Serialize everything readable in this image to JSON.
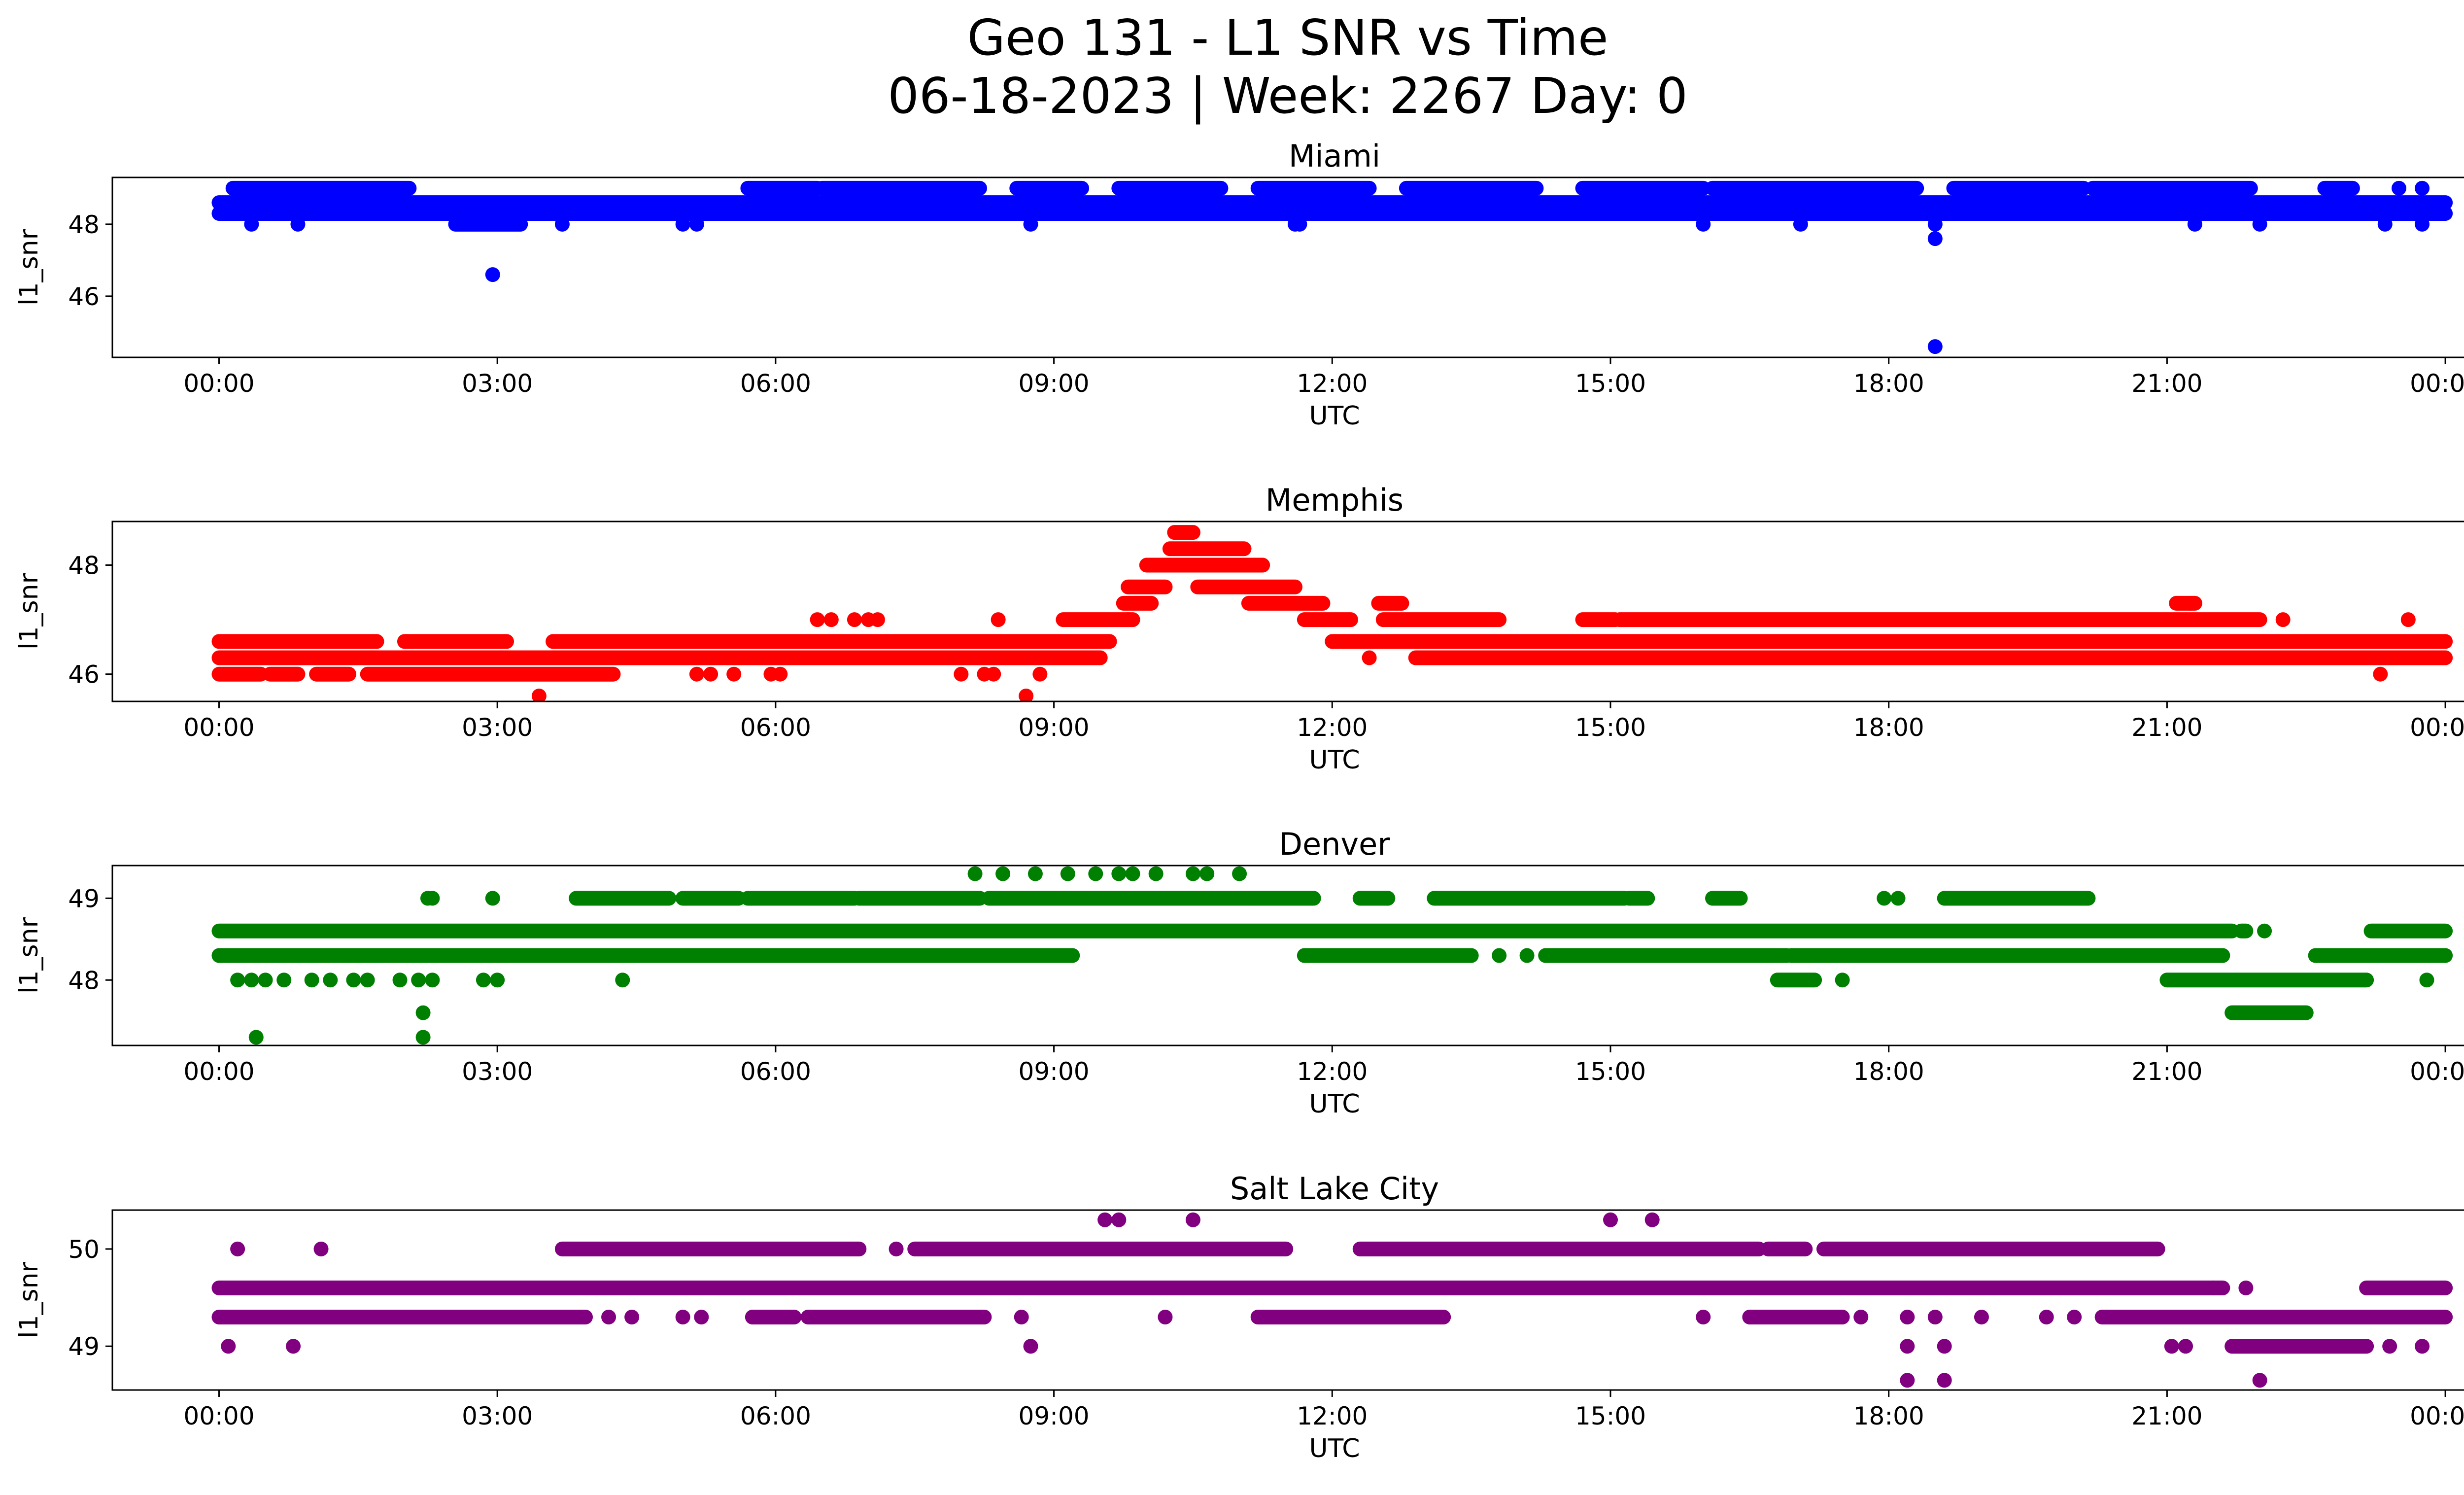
{
  "figure": {
    "title_line1": "Geo 131 - L1 SNR vs Time",
    "title_line2": "06-18-2023 | Week: 2267 Day: 0"
  },
  "chart_data": [
    {
      "type": "scatter",
      "title": "Miami",
      "xlabel": "UTC",
      "ylabel": "l1_snr",
      "x_tick_labels": [
        "00:00",
        "03:00",
        "06:00",
        "09:00",
        "12:00",
        "15:00",
        "18:00",
        "21:00",
        "00:00"
      ],
      "xlim_hours": [
        -1.15,
        25.2
      ],
      "ylim": [
        44.3,
        49.3
      ],
      "y_ticks": [
        46,
        48
      ],
      "color": "#0000ff",
      "grid": false,
      "bands": [
        {
          "y": 48.6,
          "segments": [
            [
              0,
              24
            ]
          ]
        },
        {
          "y": 48.3,
          "segments": [
            [
              0,
              24
            ]
          ]
        },
        {
          "y": 49.0,
          "segments": [
            [
              0.15,
              2.05
            ],
            [
              5.7,
              6.45
            ],
            [
              6.5,
              8.2
            ],
            [
              8.6,
              9.3
            ],
            [
              9.7,
              10.8
            ],
            [
              11.2,
              12.4
            ],
            [
              12.8,
              14.2
            ],
            [
              14.7,
              16.0
            ],
            [
              16.1,
              18.3
            ],
            [
              18.7,
              20.1
            ],
            [
              20.2,
              21.9
            ],
            [
              22.7,
              23.0
            ]
          ]
        },
        {
          "y": 48.0,
          "segments": [
            [
              2.55,
              3.25
            ]
          ]
        }
      ],
      "points": [
        {
          "x": 0.35,
          "y": 48.0
        },
        {
          "x": 0.85,
          "y": 48.0
        },
        {
          "x": 2.95,
          "y": 46.6
        },
        {
          "x": 3.7,
          "y": 48.0
        },
        {
          "x": 5.0,
          "y": 48.0
        },
        {
          "x": 5.15,
          "y": 48.0
        },
        {
          "x": 8.75,
          "y": 48.0
        },
        {
          "x": 11.6,
          "y": 48.0
        },
        {
          "x": 11.65,
          "y": 48.0
        },
        {
          "x": 16.0,
          "y": 48.0
        },
        {
          "x": 17.05,
          "y": 48.0
        },
        {
          "x": 18.5,
          "y": 48.0
        },
        {
          "x": 18.5,
          "y": 47.6
        },
        {
          "x": 18.5,
          "y": 44.6
        },
        {
          "x": 21.3,
          "y": 48.0
        },
        {
          "x": 22.0,
          "y": 48.0
        },
        {
          "x": 23.35,
          "y": 48.0
        },
        {
          "x": 23.5,
          "y": 49.0
        },
        {
          "x": 23.75,
          "y": 49.0
        },
        {
          "x": 23.75,
          "y": 48.0
        }
      ]
    },
    {
      "type": "scatter",
      "title": "Memphis",
      "xlabel": "UTC",
      "ylabel": "l1_snr",
      "x_tick_labels": [
        "00:00",
        "03:00",
        "06:00",
        "09:00",
        "12:00",
        "15:00",
        "18:00",
        "21:00",
        "00:00"
      ],
      "xlim_hours": [
        -1.15,
        25.2
      ],
      "ylim": [
        45.5,
        48.8
      ],
      "y_ticks": [
        46,
        48
      ],
      "color": "#ff0000",
      "grid": false,
      "bands": [
        {
          "y": 46.6,
          "segments": [
            [
              0,
              1.7
            ],
            [
              2.0,
              3.1
            ],
            [
              3.6,
              9.6
            ],
            [
              12.0,
              24
            ]
          ]
        },
        {
          "y": 46.3,
          "segments": [
            [
              0,
              9.5
            ],
            [
              12.9,
              24
            ]
          ]
        },
        {
          "y": 46.0,
          "segments": [
            [
              0,
              0.45
            ],
            [
              0.55,
              0.85
            ],
            [
              1.05,
              1.4
            ],
            [
              1.6,
              4.25
            ]
          ]
        },
        {
          "y": 47.0,
          "segments": [
            [
              9.1,
              9.85
            ],
            [
              11.7,
              12.2
            ],
            [
              12.55,
              13.8
            ],
            [
              14.7,
              15.05
            ],
            [
              15.1,
              22.0
            ]
          ]
        },
        {
          "y": 47.3,
          "segments": [
            [
              9.75,
              10.05
            ],
            [
              11.1,
              11.9
            ],
            [
              12.5,
              12.75
            ],
            [
              21.1,
              21.3
            ]
          ]
        },
        {
          "y": 47.6,
          "segments": [
            [
              9.8,
              10.2
            ],
            [
              10.55,
              11.6
            ]
          ]
        },
        {
          "y": 48.0,
          "segments": [
            [
              10.0,
              11.25
            ]
          ]
        },
        {
          "y": 48.3,
          "segments": [
            [
              10.25,
              11.05
            ]
          ]
        },
        {
          "y": 48.6,
          "segments": [
            [
              10.3,
              10.5
            ]
          ]
        }
      ],
      "points": [
        {
          "x": 3.45,
          "y": 45.6
        },
        {
          "x": 8.7,
          "y": 45.6
        },
        {
          "x": 5.15,
          "y": 46.0
        },
        {
          "x": 5.3,
          "y": 46.0
        },
        {
          "x": 5.55,
          "y": 46.0
        },
        {
          "x": 5.95,
          "y": 46.0
        },
        {
          "x": 6.05,
          "y": 46.0
        },
        {
          "x": 8.0,
          "y": 46.0
        },
        {
          "x": 8.25,
          "y": 46.0
        },
        {
          "x": 8.35,
          "y": 46.0
        },
        {
          "x": 8.85,
          "y": 46.0
        },
        {
          "x": 6.45,
          "y": 47.0
        },
        {
          "x": 6.6,
          "y": 47.0
        },
        {
          "x": 6.85,
          "y": 47.0
        },
        {
          "x": 7.0,
          "y": 47.0
        },
        {
          "x": 7.1,
          "y": 47.0
        },
        {
          "x": 8.4,
          "y": 47.0
        },
        {
          "x": 9.8,
          "y": 47.0
        },
        {
          "x": 12.4,
          "y": 46.3
        },
        {
          "x": 23.3,
          "y": 46.0
        },
        {
          "x": 23.6,
          "y": 47.0
        },
        {
          "x": 22.25,
          "y": 47.0
        },
        {
          "x": 21.25,
          "y": 47.3
        }
      ]
    },
    {
      "type": "scatter",
      "title": "Denver",
      "xlabel": "UTC",
      "ylabel": "l1_snr",
      "x_tick_labels": [
        "00:00",
        "03:00",
        "06:00",
        "09:00",
        "12:00",
        "15:00",
        "18:00",
        "21:00",
        "00:00"
      ],
      "xlim_hours": [
        -1.15,
        25.2
      ],
      "ylim": [
        47.2,
        49.4
      ],
      "y_ticks": [
        48,
        49
      ],
      "color": "#008000",
      "grid": false,
      "bands": [
        {
          "y": 48.6,
          "segments": [
            [
              0,
              21.7
            ],
            [
              21.8,
              21.85
            ],
            [
              23.2,
              24
            ]
          ]
        },
        {
          "y": 48.3,
          "segments": [
            [
              0,
              9.2
            ],
            [
              11.7,
              13.5
            ],
            [
              14.3,
              16.9
            ],
            [
              16.95,
              21.6
            ],
            [
              22.6,
              24
            ]
          ]
        },
        {
          "y": 49.0,
          "segments": [
            [
              3.85,
              4.85
            ],
            [
              5.0,
              5.6
            ],
            [
              5.7,
              6.85
            ],
            [
              6.9,
              8.2
            ],
            [
              8.3,
              11.8
            ],
            [
              12.3,
              12.6
            ],
            [
              13.1,
              15.15
            ],
            [
              15.2,
              15.4
            ],
            [
              16.1,
              16.4
            ],
            [
              18.6,
              20.15
            ]
          ]
        },
        {
          "y": 48.0,
          "segments": [
            [
              16.8,
              17.2
            ],
            [
              21.0,
              23.15
            ]
          ]
        },
        {
          "y": 47.6,
          "segments": [
            [
              21.7,
              22.5
            ]
          ]
        }
      ],
      "points": [
        {
          "x": 0.2,
          "y": 48.0
        },
        {
          "x": 0.35,
          "y": 48.0
        },
        {
          "x": 0.5,
          "y": 48.0
        },
        {
          "x": 0.7,
          "y": 48.0
        },
        {
          "x": 1.0,
          "y": 48.0
        },
        {
          "x": 1.2,
          "y": 48.0
        },
        {
          "x": 1.45,
          "y": 48.0
        },
        {
          "x": 1.6,
          "y": 48.0
        },
        {
          "x": 1.95,
          "y": 48.0
        },
        {
          "x": 2.15,
          "y": 48.0
        },
        {
          "x": 2.3,
          "y": 48.0
        },
        {
          "x": 2.85,
          "y": 48.0
        },
        {
          "x": 3.0,
          "y": 48.0
        },
        {
          "x": 4.35,
          "y": 48.0
        },
        {
          "x": 17.5,
          "y": 48.0
        },
        {
          "x": 23.8,
          "y": 48.0
        },
        {
          "x": 0.4,
          "y": 47.3
        },
        {
          "x": 2.2,
          "y": 47.3
        },
        {
          "x": 2.2,
          "y": 47.6
        },
        {
          "x": 2.25,
          "y": 49.0
        },
        {
          "x": 2.3,
          "y": 49.0
        },
        {
          "x": 2.95,
          "y": 49.0
        },
        {
          "x": 8.15,
          "y": 49.3
        },
        {
          "x": 8.45,
          "y": 49.3
        },
        {
          "x": 8.8,
          "y": 49.3
        },
        {
          "x": 9.15,
          "y": 49.3
        },
        {
          "x": 9.45,
          "y": 49.3
        },
        {
          "x": 9.7,
          "y": 49.3
        },
        {
          "x": 9.85,
          "y": 49.3
        },
        {
          "x": 10.1,
          "y": 49.3
        },
        {
          "x": 10.5,
          "y": 49.3
        },
        {
          "x": 10.65,
          "y": 49.3
        },
        {
          "x": 11.0,
          "y": 49.3
        },
        {
          "x": 12.6,
          "y": 49.0
        },
        {
          "x": 12.65,
          "y": 48.3
        },
        {
          "x": 17.95,
          "y": 49.0
        },
        {
          "x": 18.1,
          "y": 49.0
        },
        {
          "x": 22.05,
          "y": 48.6
        },
        {
          "x": 14.1,
          "y": 48.3
        },
        {
          "x": 13.8,
          "y": 48.3
        }
      ]
    },
    {
      "type": "scatter",
      "title": "Salt Lake City",
      "xlabel": "UTC",
      "ylabel": "l1_snr",
      "x_tick_labels": [
        "00:00",
        "03:00",
        "06:00",
        "09:00",
        "12:00",
        "15:00",
        "18:00",
        "21:00",
        "00:00"
      ],
      "xlim_hours": [
        -1.15,
        25.2
      ],
      "ylim": [
        48.55,
        50.4
      ],
      "y_ticks": [
        49,
        50
      ],
      "color": "#800080",
      "grid": false,
      "bands": [
        {
          "y": 49.6,
          "segments": [
            [
              0,
              21.6
            ],
            [
              23.15,
              24
            ]
          ]
        },
        {
          "y": 49.3,
          "segments": [
            [
              0,
              3.95
            ],
            [
              5.75,
              6.2
            ],
            [
              6.35,
              8.25
            ],
            [
              11.2,
              13.2
            ],
            [
              16.5,
              17.5
            ],
            [
              20.3,
              24
            ]
          ]
        },
        {
          "y": 50.0,
          "segments": [
            [
              3.7,
              6.9
            ],
            [
              7.5,
              11.5
            ],
            [
              12.3,
              16.6
            ],
            [
              16.7,
              17.1
            ],
            [
              17.3,
              20.9
            ]
          ]
        },
        {
          "y": 49.0,
          "segments": [
            [
              21.7,
              23.15
            ]
          ]
        }
      ],
      "points": [
        {
          "x": 0.1,
          "y": 49.0
        },
        {
          "x": 0.8,
          "y": 49.0
        },
        {
          "x": 8.75,
          "y": 49.0
        },
        {
          "x": 18.2,
          "y": 49.0
        },
        {
          "x": 18.6,
          "y": 49.0
        },
        {
          "x": 21.05,
          "y": 49.0
        },
        {
          "x": 21.2,
          "y": 49.0
        },
        {
          "x": 23.4,
          "y": 49.0
        },
        {
          "x": 23.75,
          "y": 49.0
        },
        {
          "x": 0.2,
          "y": 50.0
        },
        {
          "x": 1.1,
          "y": 50.0
        },
        {
          "x": 7.3,
          "y": 50.0
        },
        {
          "x": 9.55,
          "y": 50.3
        },
        {
          "x": 9.7,
          "y": 50.3
        },
        {
          "x": 10.5,
          "y": 50.3
        },
        {
          "x": 15.0,
          "y": 50.3
        },
        {
          "x": 15.45,
          "y": 50.3
        },
        {
          "x": 18.2,
          "y": 48.65
        },
        {
          "x": 18.6,
          "y": 48.65
        },
        {
          "x": 22.0,
          "y": 48.65
        },
        {
          "x": 4.2,
          "y": 49.3
        },
        {
          "x": 4.45,
          "y": 49.3
        },
        {
          "x": 5.0,
          "y": 49.3
        },
        {
          "x": 5.2,
          "y": 49.3
        },
        {
          "x": 8.65,
          "y": 49.3
        },
        {
          "x": 10.2,
          "y": 49.3
        },
        {
          "x": 16.0,
          "y": 49.3
        },
        {
          "x": 17.7,
          "y": 49.3
        },
        {
          "x": 18.2,
          "y": 49.3
        },
        {
          "x": 18.5,
          "y": 49.3
        },
        {
          "x": 19.0,
          "y": 49.3
        },
        {
          "x": 19.7,
          "y": 49.3
        },
        {
          "x": 20.0,
          "y": 49.3
        },
        {
          "x": 21.15,
          "y": 49.3
        },
        {
          "x": 21.5,
          "y": 49.6
        },
        {
          "x": 21.85,
          "y": 49.6
        }
      ]
    }
  ]
}
